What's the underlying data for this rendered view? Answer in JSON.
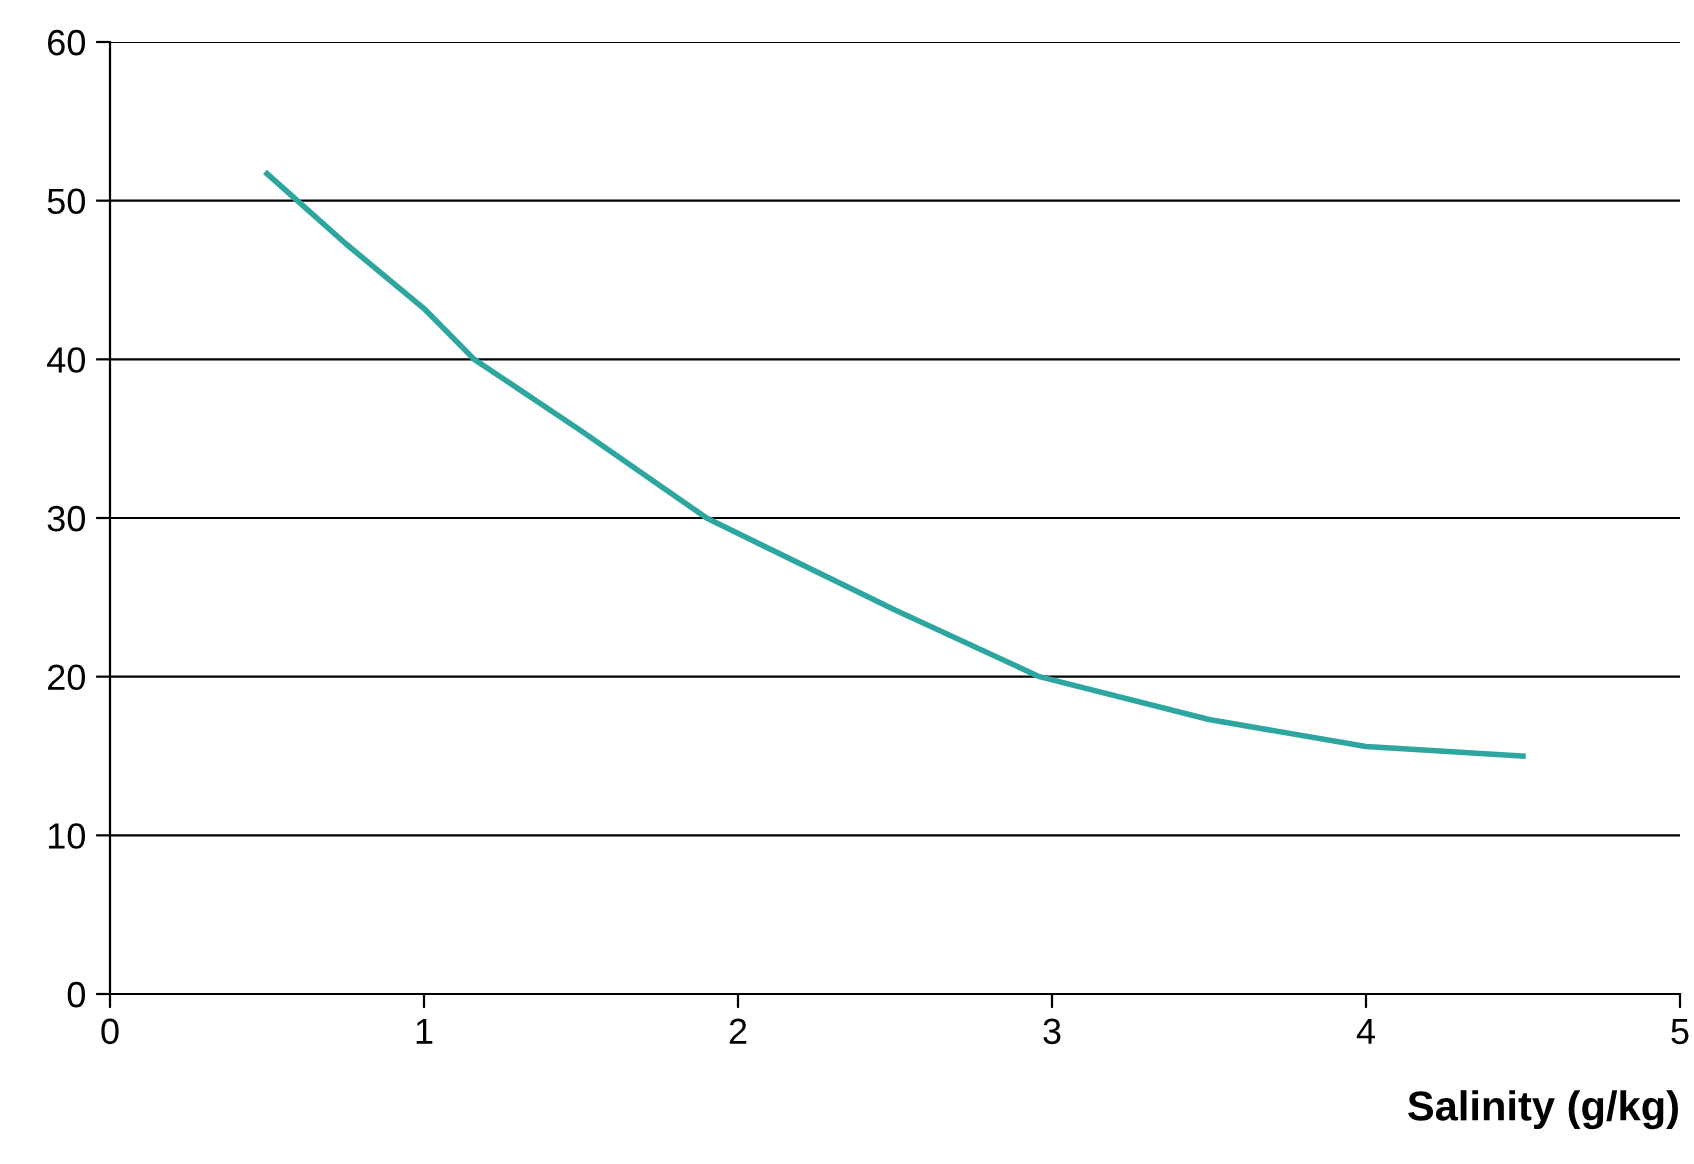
{
  "chart_data": {
    "type": "line",
    "xlabel": "Salinity (g/kg)",
    "x": [
      0.5,
      0.75,
      1.0,
      1.16,
      1.5,
      1.9,
      2.5,
      2.96,
      3.5,
      4.0,
      4.5
    ],
    "series": [
      {
        "color": "#2ea6a0",
        "values": [
          51.7,
          47.3,
          43.2,
          40,
          35.5,
          30,
          24.2,
          20,
          17.3,
          15.6,
          15.0
        ]
      }
    ],
    "xlim": [
      0,
      5
    ],
    "xticks": [
      0,
      1,
      2,
      3,
      4,
      5
    ],
    "ylim": [
      0,
      60
    ],
    "yticks": [
      0,
      10,
      20,
      30,
      40,
      50,
      60
    ],
    "grid": "y",
    "marker": "none",
    "line_style": "solid"
  }
}
